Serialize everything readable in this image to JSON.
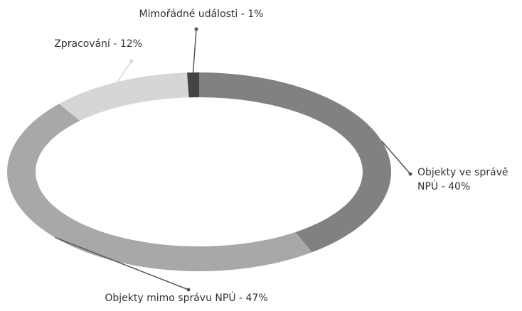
{
  "chart_data": {
    "type": "donut",
    "categories": [
      "Objekty ve správě NPÚ - 40%",
      "Objekty mimo správu NPÚ - 47%",
      "Zpracování - 12%",
      "Mimořádné události - 1%"
    ],
    "values": [
      40,
      47,
      12,
      1
    ],
    "colors": [
      "#818181",
      "#a8a8a8",
      "#d6d6d6",
      "#444444"
    ]
  }
}
